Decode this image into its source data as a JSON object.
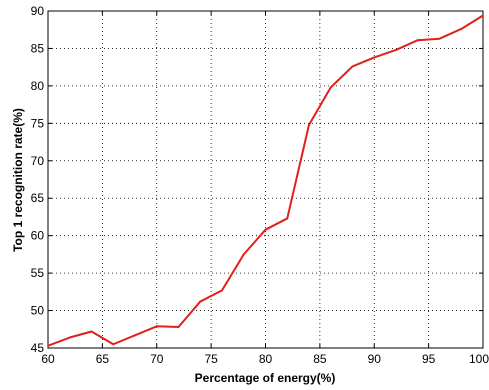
{
  "chart_data": {
    "type": "line",
    "title": "",
    "xlabel": "Percentage of energy(%)",
    "ylabel": "Top 1 recognition rate(%)",
    "xlim": [
      60,
      100
    ],
    "ylim": [
      45,
      90
    ],
    "xticks": [
      60,
      65,
      70,
      75,
      80,
      85,
      90,
      95,
      100
    ],
    "yticks": [
      45,
      50,
      55,
      60,
      65,
      70,
      75,
      80,
      85,
      90
    ],
    "grid": "dotted",
    "legend": "none",
    "series": [
      {
        "color": "#e0201b",
        "x": [
          60,
          62,
          64,
          66,
          68,
          70,
          72,
          74,
          76,
          78,
          80,
          82,
          84,
          86,
          88,
          90,
          92,
          94,
          96,
          98,
          100
        ],
        "y": [
          45.3,
          46.4,
          47.2,
          45.5,
          46.7,
          47.9,
          47.8,
          51.2,
          52.7,
          57.5,
          60.8,
          62.3,
          74.8,
          79.8,
          82.6,
          83.8,
          84.8,
          86.1,
          86.3,
          87.6,
          89.4
        ]
      }
    ]
  }
}
